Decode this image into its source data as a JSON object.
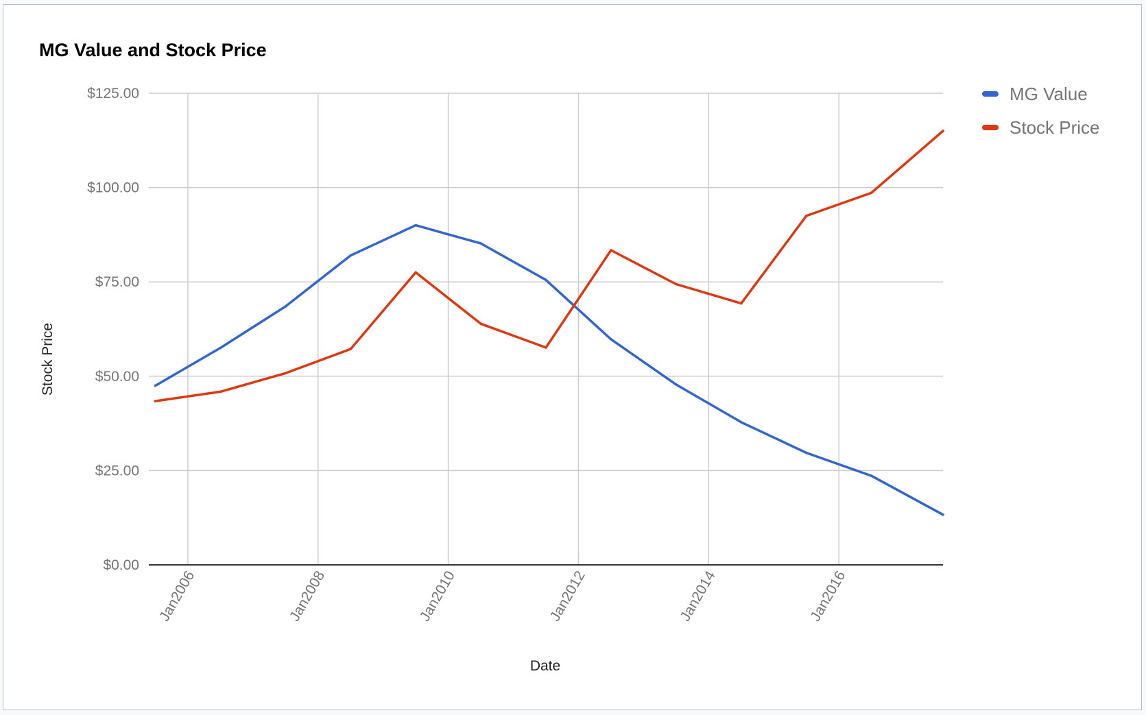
{
  "chart_data": {
    "type": "line",
    "title": "MG Value and Stock Price",
    "xlabel": "Date",
    "ylabel": "Stock Price",
    "x_ticks": [
      "Jan2006",
      "Jan2008",
      "Jan2010",
      "Jan2012",
      "Jan2014",
      "Jan2016"
    ],
    "y_ticks": [
      "$0.00",
      "$25.00",
      "$50.00",
      "$75.00",
      "$100.00",
      "$125.00"
    ],
    "ylim": [
      0,
      125
    ],
    "xlim": [
      2005.4,
      2017.6
    ],
    "x": [
      2005.5,
      2006.5,
      2007.5,
      2008.5,
      2009.5,
      2010.5,
      2011.5,
      2012.5,
      2013.5,
      2014.5,
      2015.5,
      2016.5,
      2017.6
    ],
    "series": [
      {
        "name": "MG Value",
        "color": "#3366cc",
        "values": [
          47.5,
          57.5,
          68.5,
          82.0,
          90.0,
          85.2,
          75.5,
          59.8,
          47.8,
          37.8,
          29.7,
          23.6,
          13.3
        ]
      },
      {
        "name": "Stock Price",
        "color": "#dc3912",
        "values": [
          43.4,
          45.9,
          50.8,
          57.2,
          77.5,
          63.9,
          57.6,
          83.4,
          74.4,
          69.3,
          92.5,
          98.6,
          115.0
        ]
      }
    ],
    "grid": true,
    "legend_position": "right"
  }
}
